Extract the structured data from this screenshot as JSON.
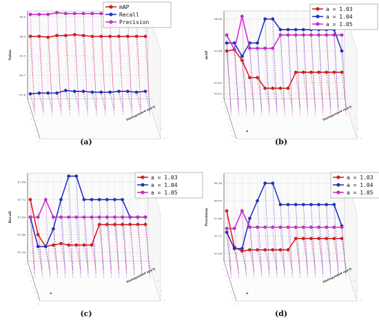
{
  "chart_data": [
    {
      "type": "line",
      "caption": "(a)",
      "ylabel": "Value",
      "depth_label": "Distinguished epoch",
      "yticks": [
        "87.4",
        "89.7",
        "92.0",
        "94.3",
        "96.6"
      ],
      "ylim": [
        86.9,
        97.3
      ],
      "n_points": 14,
      "legend_position": "top-right",
      "series": [
        {
          "name": "mAP",
          "color": "#e41a1c",
          "values": [
            94.3,
            94.3,
            94.2,
            94.4,
            94.4,
            94.5,
            94.4,
            94.3,
            94.3,
            94.3,
            94.3,
            94.3,
            94.3,
            94.3
          ]
        },
        {
          "name": "Recall",
          "color": "#2430c8",
          "values": [
            87.5,
            87.6,
            87.6,
            87.6,
            87.9,
            87.8,
            87.8,
            87.7,
            87.7,
            87.7,
            87.8,
            87.8,
            87.7,
            87.8
          ]
        },
        {
          "name": "Precision",
          "color": "#d42ad4",
          "values": [
            96.9,
            96.9,
            96.9,
            97.1,
            97.0,
            97.0,
            97.0,
            97.0,
            97.0,
            97.0,
            96.9,
            97.0,
            96.9,
            97.0
          ]
        }
      ]
    },
    {
      "type": "line",
      "caption": "(b)",
      "ylabel": "mAP",
      "xlabel": "a",
      "depth_label": "Distinguished epoch",
      "yticks": [
        "93.52",
        "93.60",
        "93.84",
        "94.08"
      ],
      "ylim": [
        93.48,
        94.14
      ],
      "n_points": 16,
      "legend_position": "top-right",
      "series": [
        {
          "name": "a = 1.03",
          "color": "#e41a1c",
          "values": [
            93.84,
            93.85,
            93.77,
            93.64,
            93.64,
            93.56,
            93.56,
            93.56,
            93.56,
            93.68,
            93.68,
            93.68,
            93.68,
            93.68,
            93.68,
            93.68
          ]
        },
        {
          "name": "a = 1.04",
          "color": "#2430c8",
          "values": [
            93.9,
            93.9,
            93.8,
            93.9,
            93.9,
            94.08,
            94.08,
            94.0,
            94.0,
            94.0,
            94.0,
            94.0,
            94.0,
            94.0,
            94.0,
            93.84
          ]
        },
        {
          "name": "a = 1.05",
          "color": "#d42ad4",
          "values": [
            93.96,
            93.85,
            94.1,
            93.86,
            93.86,
            93.86,
            93.86,
            93.96,
            93.96,
            93.96,
            93.96,
            93.96,
            93.96,
            93.96,
            93.96,
            93.96
          ]
        }
      ]
    },
    {
      "type": "line",
      "caption": "(c)",
      "ylabel": "Recall",
      "xlabel": "a",
      "depth_label": "Distinguished epoch",
      "yticks": [
        "87.36",
        "87.48",
        "87.60",
        "87.72",
        "87.84"
      ],
      "ylim": [
        87.3,
        87.9
      ],
      "n_points": 16,
      "legend_position": "top-right",
      "series": [
        {
          "name": "a = 1.03",
          "color": "#e41a1c",
          "values": [
            87.72,
            87.48,
            87.4,
            87.41,
            87.42,
            87.41,
            87.41,
            87.41,
            87.41,
            87.55,
            87.55,
            87.55,
            87.55,
            87.55,
            87.55,
            87.55
          ]
        },
        {
          "name": "a = 1.04",
          "color": "#2430c8",
          "values": [
            87.6,
            87.4,
            87.4,
            87.52,
            87.72,
            87.88,
            87.88,
            87.72,
            87.72,
            87.72,
            87.72,
            87.72,
            87.72,
            87.6,
            87.6,
            87.6
          ]
        },
        {
          "name": "a = 1.05",
          "color": "#d42ad4",
          "values": [
            87.6,
            87.6,
            87.72,
            87.6,
            87.6,
            87.6,
            87.6,
            87.6,
            87.6,
            87.6,
            87.6,
            87.6,
            87.6,
            87.6,
            87.6,
            87.6
          ]
        }
      ]
    },
    {
      "type": "line",
      "caption": "(d)",
      "ylabel": "Precision",
      "xlabel": "a",
      "depth_label": "Distinguished epoch",
      "yticks": [
        "97.58",
        "97.72",
        "97.86",
        "98.00",
        "98.14"
      ],
      "ylim": [
        97.52,
        98.22
      ],
      "n_points": 16,
      "legend_position": "top-right",
      "series": [
        {
          "name": "a = 1.03",
          "color": "#e41a1c",
          "values": [
            97.92,
            97.63,
            97.6,
            97.61,
            97.61,
            97.61,
            97.61,
            97.61,
            97.61,
            97.7,
            97.7,
            97.7,
            97.7,
            97.7,
            97.7,
            97.7
          ]
        },
        {
          "name": "a = 1.04",
          "color": "#2430c8",
          "values": [
            97.75,
            97.62,
            97.62,
            97.86,
            98.0,
            98.14,
            98.14,
            97.97,
            97.97,
            97.97,
            97.97,
            97.97,
            97.97,
            97.97,
            97.97,
            97.8
          ]
        },
        {
          "name": "a = 1.05",
          "color": "#d42ad4",
          "values": [
            97.78,
            97.78,
            97.92,
            97.79,
            97.79,
            97.79,
            97.79,
            97.79,
            97.79,
            97.79,
            97.79,
            97.79,
            97.79,
            97.79,
            97.79,
            97.79
          ]
        }
      ]
    }
  ]
}
